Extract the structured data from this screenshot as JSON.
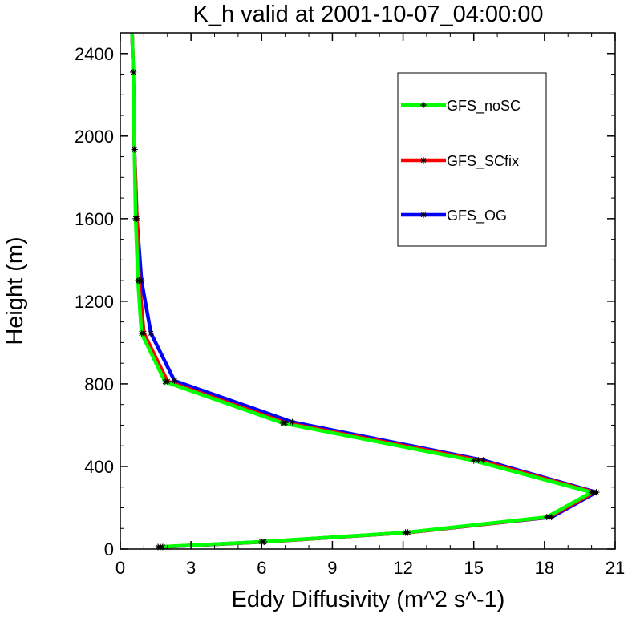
{
  "chart_data": {
    "type": "line",
    "title": "K_h valid at 2001-10-07_04:00:00",
    "xlabel": "Eddy Diffusivity (m^2 s^-1)",
    "ylabel": "Height (m)",
    "xlim": [
      0,
      21
    ],
    "ylim": [
      0,
      2500
    ],
    "xticks": [
      0,
      3,
      6,
      9,
      12,
      15,
      18,
      21
    ],
    "yticks": [
      0,
      400,
      800,
      1200,
      1600,
      2000,
      2400
    ],
    "grid": false,
    "legend_position": "top-right",
    "series": [
      {
        "name": "GFS_OG",
        "color": "#0000ff",
        "marker": "asterisk",
        "points": [
          {
            "x": 1.8,
            "y": 10
          },
          {
            "x": 6.1,
            "y": 35
          },
          {
            "x": 12.2,
            "y": 80
          },
          {
            "x": 18.3,
            "y": 155
          },
          {
            "x": 20.2,
            "y": 275
          },
          {
            "x": 15.4,
            "y": 430
          },
          {
            "x": 7.3,
            "y": 615
          },
          {
            "x": 2.3,
            "y": 815
          },
          {
            "x": 1.3,
            "y": 1045
          },
          {
            "x": 0.9,
            "y": 1300
          },
          {
            "x": 0.7,
            "y": 1600
          },
          {
            "x": 0.6,
            "y": 1935
          },
          {
            "x": 0.55,
            "y": 2310
          },
          {
            "x": 0.5,
            "y": 2500
          }
        ]
      },
      {
        "name": "GFS_SCfix",
        "color": "#ff0000",
        "marker": "asterisk",
        "points": [
          {
            "x": 1.7,
            "y": 10
          },
          {
            "x": 6.1,
            "y": 35
          },
          {
            "x": 12.2,
            "y": 80
          },
          {
            "x": 18.2,
            "y": 155
          },
          {
            "x": 20.1,
            "y": 275
          },
          {
            "x": 15.2,
            "y": 430
          },
          {
            "x": 7.0,
            "y": 612
          },
          {
            "x": 2.0,
            "y": 812
          },
          {
            "x": 1.0,
            "y": 1045
          },
          {
            "x": 0.8,
            "y": 1300
          },
          {
            "x": 0.7,
            "y": 1600
          },
          {
            "x": 0.6,
            "y": 1935
          },
          {
            "x": 0.55,
            "y": 2310
          },
          {
            "x": 0.5,
            "y": 2500
          }
        ]
      },
      {
        "name": "GFS_noSC",
        "color": "#00ff00",
        "marker": "asterisk",
        "points": [
          {
            "x": 1.6,
            "y": 10
          },
          {
            "x": 6.0,
            "y": 35
          },
          {
            "x": 12.1,
            "y": 80
          },
          {
            "x": 18.1,
            "y": 155
          },
          {
            "x": 20.0,
            "y": 275
          },
          {
            "x": 15.0,
            "y": 428
          },
          {
            "x": 6.9,
            "y": 610
          },
          {
            "x": 1.9,
            "y": 810
          },
          {
            "x": 0.9,
            "y": 1045
          },
          {
            "x": 0.75,
            "y": 1300
          },
          {
            "x": 0.65,
            "y": 1600
          },
          {
            "x": 0.6,
            "y": 1935
          },
          {
            "x": 0.55,
            "y": 2310
          },
          {
            "x": 0.5,
            "y": 2500
          }
        ]
      }
    ],
    "legend": [
      {
        "label": "GFS_noSC",
        "color": "#00ff00"
      },
      {
        "label": "GFS_SCfix",
        "color": "#ff0000"
      },
      {
        "label": "GFS_OG",
        "color": "#0000ff"
      }
    ]
  }
}
